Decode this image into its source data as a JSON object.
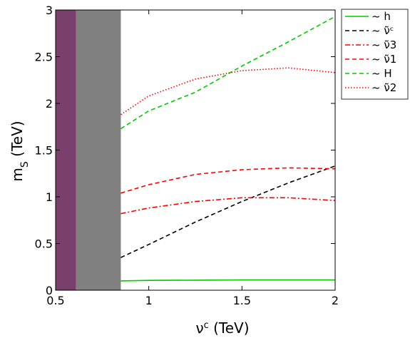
{
  "chart_data": {
    "type": "line",
    "xlabel": "νc (TeV)",
    "ylabel": "mS (TeV)",
    "xlim": [
      0.5,
      2.0
    ],
    "ylim": [
      0.0,
      3.0
    ],
    "xticks": [
      "0.5",
      "1",
      "1.5",
      "2"
    ],
    "yticks": [
      "0",
      "0.5",
      "1",
      "1.5",
      "2",
      "2.5",
      "3"
    ],
    "grid": false,
    "legend_position": "outside-top-right",
    "excluded_regions": [
      {
        "x_range": [
          0.5,
          0.61
        ],
        "color": "#7b3f6e"
      },
      {
        "x_range": [
          0.61,
          0.85
        ],
        "color": "#808080"
      }
    ],
    "series": [
      {
        "name": "~ h",
        "color": "#00cc00",
        "style": "solid",
        "x": [
          0.85,
          1.0,
          1.25,
          1.5,
          1.75,
          2.0
        ],
        "y": [
          0.1,
          0.105,
          0.108,
          0.11,
          0.11,
          0.11
        ]
      },
      {
        "name": "~ ν̃ᶜ",
        "color": "#000000",
        "style": "dashed",
        "x": [
          0.85,
          1.0,
          1.25,
          1.5,
          1.75,
          2.0
        ],
        "y": [
          0.35,
          0.49,
          0.73,
          0.95,
          1.15,
          1.33
        ]
      },
      {
        "name": "~ ν̃3",
        "color": "#ff0000",
        "style": "dashdot",
        "x": [
          0.85,
          1.0,
          1.25,
          1.5,
          1.75,
          2.0
        ],
        "y": [
          0.82,
          0.88,
          0.95,
          0.99,
          0.99,
          0.96
        ]
      },
      {
        "name": "~ ν̃1",
        "color": "#ff0000",
        "style": "dashed",
        "x": [
          0.85,
          1.0,
          1.25,
          1.5,
          1.75,
          2.0
        ],
        "y": [
          1.04,
          1.13,
          1.24,
          1.29,
          1.31,
          1.3
        ]
      },
      {
        "name": "~ H",
        "color": "#00cc00",
        "style": "dashed",
        "x": [
          0.85,
          1.0,
          1.25,
          1.5,
          1.75,
          2.0
        ],
        "y": [
          1.73,
          1.92,
          2.12,
          2.4,
          2.66,
          2.93
        ]
      },
      {
        "name": "~ ν̃2",
        "color": "#ff0000",
        "style": "dotted",
        "x": [
          0.85,
          1.0,
          1.25,
          1.5,
          1.75,
          2.0
        ],
        "y": [
          1.88,
          2.08,
          2.26,
          2.35,
          2.38,
          2.33
        ]
      }
    ]
  }
}
